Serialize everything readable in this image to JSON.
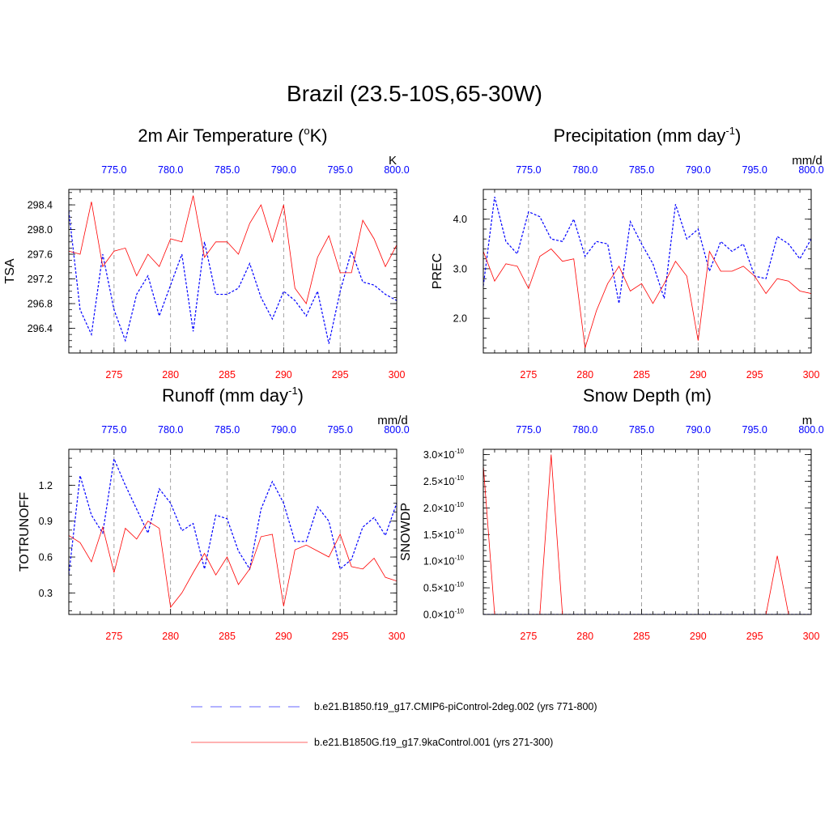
{
  "title": "Brazil (23.5-10S,65-30W)",
  "colors": {
    "series_a": "#0000ff",
    "series_b": "#ff0000",
    "frame": "#000000",
    "grid": "#8c8c8c"
  },
  "legend": {
    "items": [
      {
        "label": "b.e21.B1850.f19_g17.CMIP6-piControl-2deg.002 (yrs 771-800)",
        "color": "#0000ff",
        "dash": "dashed"
      },
      {
        "label": "b.e21.B1850G.f19_g17.9kaControl.001 (yrs 271-300)",
        "color": "#ff0000",
        "dash": "solid"
      }
    ]
  },
  "chart_data": [
    {
      "type": "line",
      "title": "2m Air Temperature (oK)",
      "title_main": "2m Air Temperature (",
      "title_sup": "o",
      "title_tail": "K)",
      "ylabel": "TSA",
      "units": "K",
      "xlim_bottom": [
        271,
        300
      ],
      "xlim_top": [
        771,
        800
      ],
      "xticks_bottom": [
        "275",
        "280",
        "285",
        "290",
        "295",
        "300"
      ],
      "xticks_top": [
        "775.0",
        "780.0",
        "785.0",
        "790.0",
        "795.0",
        "800.0"
      ],
      "ylim": [
        296.0,
        298.65
      ],
      "yticks": [
        "296.4",
        "296.8",
        "297.2",
        "297.6",
        "298.0",
        "298.4"
      ],
      "grid": "vertical dashed",
      "series": [
        {
          "name": "b.e21.B1850.f19_g17.CMIP6-piControl-2deg.002 (yrs 771-800)",
          "color": "#0000ff",
          "dash": "dashed",
          "x_axis": "top",
          "values": [
            298.3,
            296.7,
            296.3,
            297.6,
            296.7,
            296.2,
            296.95,
            297.25,
            296.6,
            297.1,
            297.6,
            296.35,
            297.8,
            296.95,
            296.95,
            297.05,
            297.45,
            296.9,
            296.55,
            297.0,
            296.85,
            296.6,
            297.0,
            296.15,
            297.0,
            297.65,
            297.15,
            297.1,
            296.95,
            296.85
          ]
        },
        {
          "name": "b.e21.B1850G.f19_g17.9kaControl.001 (yrs 271-300)",
          "color": "#ff0000",
          "dash": "solid",
          "x_axis": "bottom",
          "values": [
            297.65,
            297.6,
            298.45,
            297.4,
            297.65,
            297.7,
            297.25,
            297.6,
            297.4,
            297.85,
            297.8,
            298.55,
            297.55,
            297.8,
            297.8,
            297.6,
            298.1,
            298.4,
            297.8,
            298.4,
            297.05,
            296.8,
            297.55,
            297.9,
            297.3,
            297.3,
            298.15,
            297.85,
            297.4,
            297.75
          ]
        }
      ]
    },
    {
      "type": "line",
      "title": "Precipitation (mm day-1)",
      "title_main": "Precipitation (mm day",
      "title_sup": "-1",
      "title_tail": ")",
      "ylabel": "PREC",
      "units": "mm/d",
      "xlim_bottom": [
        271,
        300
      ],
      "xlim_top": [
        771,
        800
      ],
      "xticks_bottom": [
        "275",
        "280",
        "285",
        "290",
        "295",
        "300"
      ],
      "xticks_top": [
        "775.0",
        "780.0",
        "785.0",
        "790.0",
        "795.0",
        "800.0"
      ],
      "ylim": [
        1.3,
        4.6
      ],
      "yticks": [
        "2.0",
        "3.0",
        "4.0"
      ],
      "grid": "vertical dashed",
      "series": [
        {
          "name": "b.e21.B1850.f19_g17.CMIP6-piControl-2deg.002 (yrs 771-800)",
          "color": "#0000ff",
          "dash": "dashed",
          "x_axis": "top",
          "values": [
            2.65,
            4.45,
            3.55,
            3.3,
            4.15,
            4.05,
            3.6,
            3.55,
            4.0,
            3.25,
            3.55,
            3.5,
            2.3,
            3.95,
            3.5,
            3.1,
            2.4,
            4.3,
            3.6,
            3.8,
            2.95,
            3.55,
            3.35,
            3.5,
            2.85,
            2.8,
            3.65,
            3.5,
            3.2,
            3.6
          ]
        },
        {
          "name": "b.e21.B1850G.f19_g17.9kaControl.001 (yrs 271-300)",
          "color": "#ff0000",
          "dash": "solid",
          "x_axis": "bottom",
          "values": [
            3.35,
            2.75,
            3.1,
            3.05,
            2.6,
            3.25,
            3.4,
            3.15,
            3.2,
            1.4,
            2.15,
            2.7,
            3.05,
            2.55,
            2.7,
            2.3,
            2.7,
            3.15,
            2.85,
            1.55,
            3.35,
            2.95,
            2.95,
            3.05,
            2.85,
            2.5,
            2.8,
            2.75,
            2.55,
            2.5
          ]
        }
      ]
    },
    {
      "type": "line",
      "title": "Runoff (mm day-1)",
      "title_main": "Runoff (mm day",
      "title_sup": "-1",
      "title_tail": ")",
      "ylabel": "TOTRUNOFF",
      "units": "mm/d",
      "xlim_bottom": [
        271,
        300
      ],
      "xlim_top": [
        771,
        800
      ],
      "xticks_bottom": [
        "275",
        "280",
        "285",
        "290",
        "295",
        "300"
      ],
      "xticks_top": [
        "775.0",
        "780.0",
        "785.0",
        "790.0",
        "795.0",
        "800.0"
      ],
      "ylim": [
        0.12,
        1.5
      ],
      "yticks": [
        "0.3",
        "0.6",
        "0.9",
        "1.2"
      ],
      "grid": "vertical dashed",
      "series": [
        {
          "name": "b.e21.B1850.f19_g17.CMIP6-piControl-2deg.002 (yrs 771-800)",
          "color": "#0000ff",
          "dash": "dashed",
          "x_axis": "top",
          "values": [
            0.45,
            1.28,
            0.95,
            0.8,
            1.42,
            1.2,
            1.0,
            0.8,
            1.17,
            1.05,
            0.82,
            0.88,
            0.5,
            0.95,
            0.92,
            0.65,
            0.5,
            1.0,
            1.23,
            1.05,
            0.73,
            0.73,
            1.02,
            0.9,
            0.5,
            0.58,
            0.85,
            0.93,
            0.78,
            1.05
          ]
        },
        {
          "name": "b.e21.B1850G.f19_g17.9kaControl.001 (yrs 271-300)",
          "color": "#ff0000",
          "dash": "solid",
          "x_axis": "bottom",
          "values": [
            0.78,
            0.72,
            0.56,
            0.85,
            0.47,
            0.84,
            0.75,
            0.9,
            0.84,
            0.18,
            0.3,
            0.47,
            0.63,
            0.45,
            0.6,
            0.37,
            0.5,
            0.77,
            0.79,
            0.19,
            0.66,
            0.7,
            0.65,
            0.6,
            0.79,
            0.52,
            0.5,
            0.59,
            0.43,
            0.4
          ]
        }
      ]
    },
    {
      "type": "line",
      "title": "Snow Depth (m)",
      "title_main": "Snow Depth (m)",
      "title_sup": "",
      "title_tail": "",
      "ylabel": "SNOWDP",
      "units": "m",
      "xlim_bottom": [
        271,
        300
      ],
      "xlim_top": [
        771,
        800
      ],
      "xticks_bottom": [
        "275",
        "280",
        "285",
        "290",
        "295",
        "300"
      ],
      "xticks_top": [
        "775.0",
        "780.0",
        "785.0",
        "790.0",
        "795.0",
        "800.0"
      ],
      "ylim": [
        0,
        3.1
      ],
      "ytick_values": [
        0,
        0.5,
        1.0,
        1.5,
        2.0,
        2.5,
        3.0
      ],
      "yticks": [
        "0.0×10",
        "0.5×10",
        "1.0×10",
        "1.5×10",
        "2.0×10",
        "2.5×10",
        "3.0×10"
      ],
      "ytick_exponent": "-10",
      "grid": "vertical dashed",
      "series": [
        {
          "name": "b.e21.B1850.f19_g17.CMIP6-piControl-2deg.002 (yrs 771-800)",
          "color": "#0000ff",
          "dash": "dashed",
          "x_axis": "top",
          "values": [
            0,
            0,
            0,
            0,
            0,
            0,
            0,
            0,
            0,
            0,
            0,
            0,
            0,
            0,
            0,
            0,
            0,
            0,
            0,
            0,
            0,
            0,
            0,
            0,
            0,
            0,
            0,
            0,
            0,
            0
          ]
        },
        {
          "name": "b.e21.B1850G.f19_g17.9kaControl.001 (yrs 271-300)",
          "color": "#ff0000",
          "dash": "solid",
          "x_axis": "bottom",
          "values": [
            2.8,
            0,
            0,
            0,
            0,
            0,
            3.0,
            0,
            0,
            0,
            0,
            0,
            0,
            0,
            0,
            0,
            0,
            0,
            0,
            0,
            0,
            0,
            0,
            0,
            0,
            0,
            1.1,
            0,
            0,
            0
          ]
        }
      ]
    }
  ]
}
